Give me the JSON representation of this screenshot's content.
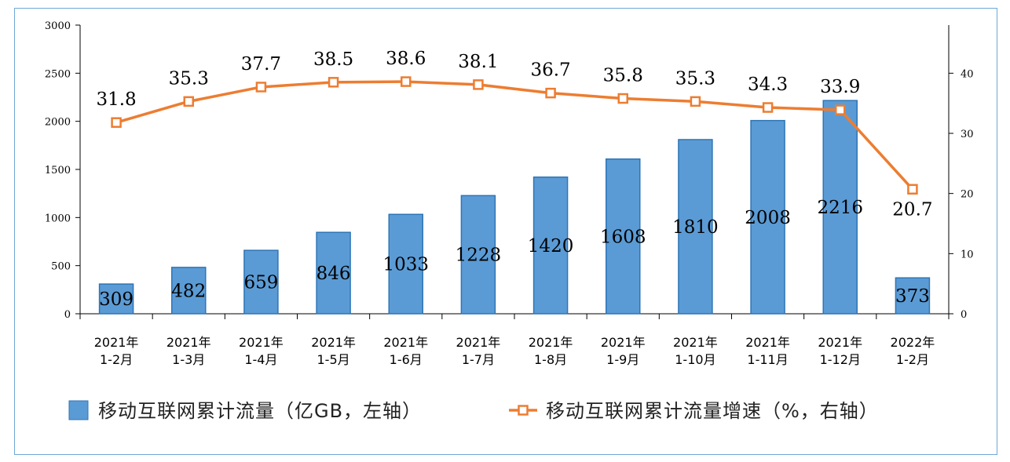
{
  "chart_data": {
    "type": "bar+line",
    "categories": [
      [
        "2021年",
        "1-2月"
      ],
      [
        "2021年",
        "1-3月"
      ],
      [
        "2021年",
        "1-4月"
      ],
      [
        "2021年",
        "1-5月"
      ],
      [
        "2021年",
        "1-6月"
      ],
      [
        "2021年",
        "1-7月"
      ],
      [
        "2021年",
        "1-8月"
      ],
      [
        "2021年",
        "1-9月"
      ],
      [
        "2021年",
        "1-10月"
      ],
      [
        "2021年",
        "1-11月"
      ],
      [
        "2021年",
        "1-12月"
      ],
      [
        "2022年",
        "1-2月"
      ]
    ],
    "series": [
      {
        "name": "移动互联网累计流量（亿GB，左轴）",
        "type": "bar",
        "axis": "left",
        "color": "#5b9bd5",
        "values": [
          309,
          482,
          659,
          846,
          1033,
          1228,
          1420,
          1608,
          1810,
          2008,
          2216,
          373
        ]
      },
      {
        "name": "移动互联网累计流量增速（%，右轴）",
        "type": "line",
        "axis": "right",
        "color": "#ed7d31",
        "values": [
          31.8,
          35.3,
          37.7,
          38.5,
          38.6,
          38.1,
          36.7,
          35.8,
          35.3,
          34.3,
          33.9,
          20.7
        ]
      }
    ],
    "left_axis": {
      "ylim": [
        0,
        3000
      ],
      "ticks": [
        0,
        500,
        1000,
        1500,
        2000,
        2500,
        3000
      ]
    },
    "right_axis": {
      "ylim": [
        0,
        48
      ],
      "ticks": [
        0,
        10,
        20,
        30,
        40
      ]
    },
    "legend_position": "bottom",
    "grid": false
  }
}
